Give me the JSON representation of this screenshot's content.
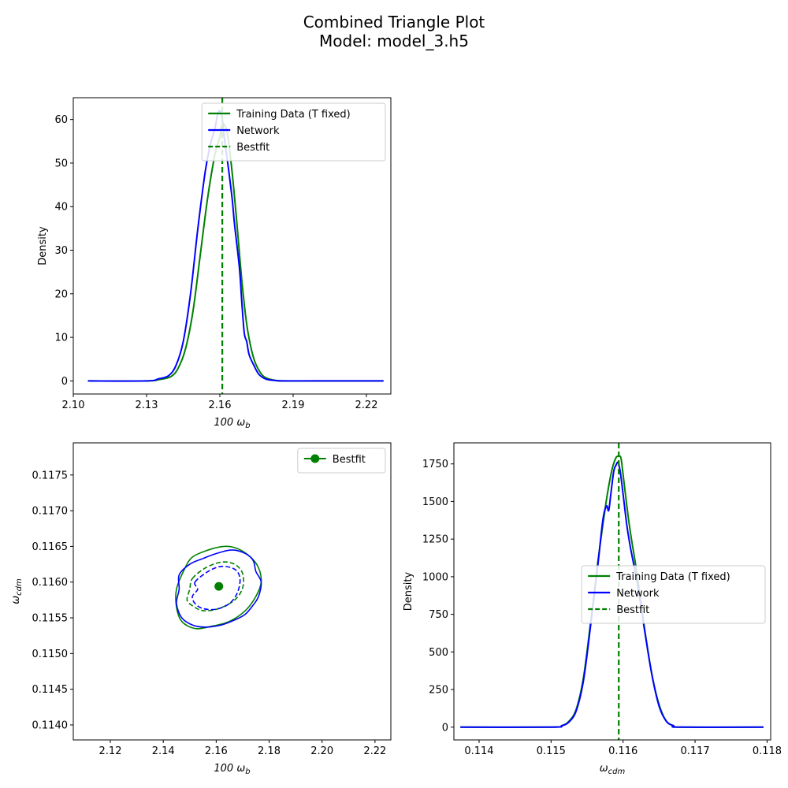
{
  "figure": {
    "title": "Combined Triangle Plot",
    "subtitle": "Model: model_3.h5"
  },
  "colors": {
    "training": "#008000",
    "network": "#0000ff",
    "bestfit": "#008000"
  },
  "chart_data": [
    {
      "id": "wb",
      "type": "line",
      "xlabel": "100 ω_b",
      "ylabel": "Density",
      "xlim": [
        2.1,
        2.23
      ],
      "ylim": [
        -3,
        65
      ],
      "x_ticks": [
        2.1,
        2.13,
        2.16,
        2.19,
        2.22
      ],
      "x_tick_labels": [
        "2.10",
        "2.13",
        "2.16",
        "2.19",
        "2.22"
      ],
      "y_ticks": [
        0,
        10,
        20,
        30,
        40,
        50,
        60
      ],
      "y_tick_labels": [
        "0",
        "10",
        "20",
        "30",
        "40",
        "50",
        "60"
      ],
      "legend": {
        "placement": "top-right",
        "entries": [
          "Training Data (T fixed)",
          "Network",
          "Bestfit"
        ]
      },
      "bestfit": 2.161,
      "series": [
        {
          "name": "Training Data (T fixed)",
          "x": [
            2.106,
            2.13,
            2.135,
            2.14,
            2.143,
            2.146,
            2.149,
            2.152,
            2.155,
            2.158,
            2.16,
            2.161,
            2.163,
            2.165,
            2.167,
            2.169,
            2.171,
            2.173,
            2.175,
            2.178,
            2.182,
            2.186,
            2.2,
            2.227
          ],
          "y": [
            0,
            0,
            0.3,
            1.0,
            3.0,
            7.5,
            16,
            29,
            42,
            52,
            56,
            59,
            57,
            48,
            36,
            23,
            13,
            7,
            3.5,
            1.0,
            0.2,
            0,
            0,
            0
          ]
        },
        {
          "name": "Network",
          "x": [
            2.106,
            2.13,
            2.135,
            2.139,
            2.142,
            2.145,
            2.148,
            2.151,
            2.154,
            2.156,
            2.158,
            2.159,
            2.16,
            2.161,
            2.162,
            2.163,
            2.165,
            2.166,
            2.168,
            2.169,
            2.17,
            2.171,
            2.172,
            2.174,
            2.176,
            2.179,
            2.183,
            2.186,
            2.2,
            2.227
          ],
          "y": [
            0,
            0,
            0.5,
            1.2,
            3.5,
            9,
            20,
            35,
            48,
            54,
            58,
            61,
            62,
            60,
            55,
            51,
            42,
            36,
            26,
            18,
            11,
            9,
            6,
            3.5,
            1.5,
            0.4,
            0.1,
            0,
            0,
            0
          ]
        }
      ]
    },
    {
      "id": "contour",
      "type": "contour",
      "xlabel": "100 ω_b",
      "ylabel": "ω_cdm",
      "xlim": [
        2.106,
        2.226
      ],
      "ylim": [
        0.11379,
        0.11795
      ],
      "x_ticks": [
        2.12,
        2.14,
        2.16,
        2.18,
        2.2,
        2.22
      ],
      "x_tick_labels": [
        "2.12",
        "2.14",
        "2.16",
        "2.18",
        "2.20",
        "2.22"
      ],
      "y_ticks": [
        0.114,
        0.1145,
        0.115,
        0.1155,
        0.116,
        0.1165,
        0.117,
        0.1175
      ],
      "y_tick_labels": [
        "0.1140",
        "0.1145",
        "0.1150",
        "0.1155",
        "0.1160",
        "0.1165",
        "0.1170",
        "0.1175"
      ],
      "legend": {
        "placement": "top-right",
        "entries": [
          "Bestfit"
        ]
      },
      "bestfit": {
        "x": 2.161,
        "y": 0.11594
      },
      "contours": [
        {
          "name": "Training Data (T fixed)",
          "level": "outer",
          "style": "solid",
          "x": [
            2.148,
            2.151,
            2.157,
            2.163,
            2.168,
            2.173,
            2.176,
            2.177,
            2.175,
            2.171,
            2.165,
            2.158,
            2.152,
            2.147,
            2.145,
            2.145,
            2.148
          ],
          "y": [
            0.11618,
            0.11635,
            0.11645,
            0.1165,
            0.11647,
            0.11635,
            0.1162,
            0.116,
            0.1158,
            0.1156,
            0.11545,
            0.11538,
            0.11535,
            0.11545,
            0.11565,
            0.1159,
            0.11618
          ]
        },
        {
          "name": "Network",
          "level": "outer",
          "style": "solid",
          "x": [
            2.146,
            2.15,
            2.155,
            2.16,
            2.166,
            2.171,
            2.174,
            2.175,
            2.177,
            2.176,
            2.174,
            2.171,
            2.167,
            2.162,
            2.156,
            2.151,
            2.147,
            2.145,
            2.146,
            2.146
          ],
          "y": [
            0.1161,
            0.11625,
            0.11633,
            0.1164,
            0.11645,
            0.1164,
            0.1163,
            0.11615,
            0.116,
            0.1158,
            0.11568,
            0.11555,
            0.11547,
            0.1154,
            0.11537,
            0.1154,
            0.1155,
            0.1157,
            0.1159,
            0.1161
          ]
        },
        {
          "name": "Training Data (T fixed)",
          "level": "inner",
          "style": "dashed",
          "x": [
            2.151,
            2.156,
            2.162,
            2.167,
            2.17,
            2.17,
            2.167,
            2.161,
            2.155,
            2.151,
            2.149,
            2.15,
            2.151
          ],
          "y": [
            0.11605,
            0.1162,
            0.11628,
            0.11625,
            0.11612,
            0.11592,
            0.11575,
            0.11563,
            0.1156,
            0.11567,
            0.11575,
            0.1159,
            0.11605
          ]
        },
        {
          "name": "Network",
          "level": "inner",
          "style": "dashed",
          "x": [
            2.152,
            2.157,
            2.162,
            2.167,
            2.169,
            2.168,
            2.165,
            2.16,
            2.155,
            2.152,
            2.151,
            2.153,
            2.152
          ],
          "y": [
            0.116,
            0.11615,
            0.11622,
            0.11618,
            0.11605,
            0.11585,
            0.1157,
            0.11562,
            0.11563,
            0.1157,
            0.1158,
            0.1159,
            0.116
          ]
        }
      ]
    },
    {
      "id": "wcdm",
      "type": "line",
      "xlabel": "ω_cdm",
      "ylabel": "Density",
      "xlim": [
        0.11365,
        0.11805
      ],
      "ylim": [
        -85,
        1890
      ],
      "x_ticks": [
        0.114,
        0.115,
        0.116,
        0.117,
        0.118
      ],
      "x_tick_labels": [
        "0.114",
        "0.115",
        "0.116",
        "0.117",
        "0.118"
      ],
      "y_ticks": [
        0,
        250,
        500,
        750,
        1000,
        1250,
        1500,
        1750
      ],
      "y_tick_labels": [
        "0",
        "250",
        "500",
        "750",
        "1000",
        "1250",
        "1500",
        "1750"
      ],
      "legend": {
        "placement": "center-right",
        "entries": [
          "Training Data (T fixed)",
          "Network",
          "Bestfit"
        ]
      },
      "bestfit": 0.11594,
      "series": [
        {
          "name": "Training Data (T fixed)",
          "x": [
            0.11374,
            0.115,
            0.11515,
            0.11525,
            0.11535,
            0.11545,
            0.11555,
            0.11565,
            0.11575,
            0.1158,
            0.11585,
            0.1159,
            0.11593,
            0.11597,
            0.116,
            0.11605,
            0.1161,
            0.1162,
            0.1163,
            0.1164,
            0.1165,
            0.1166,
            0.1167,
            0.1168,
            0.11795
          ],
          "y": [
            0,
            0,
            10,
            40,
            120,
            330,
            700,
            1100,
            1450,
            1600,
            1720,
            1790,
            1800,
            1790,
            1680,
            1480,
            1300,
            1000,
            650,
            350,
            150,
            40,
            10,
            0,
            0
          ]
        },
        {
          "name": "Network",
          "x": [
            0.11374,
            0.115,
            0.11515,
            0.11525,
            0.11535,
            0.11545,
            0.11555,
            0.11565,
            0.11572,
            0.11577,
            0.1158,
            0.11583,
            0.11587,
            0.1159,
            0.11593,
            0.11596,
            0.116,
            0.11605,
            0.1161,
            0.1162,
            0.1163,
            0.1164,
            0.1165,
            0.1166,
            0.1167,
            0.1168,
            0.11795
          ],
          "y": [
            0,
            0,
            10,
            35,
            110,
            310,
            680,
            1080,
            1380,
            1470,
            1440,
            1550,
            1700,
            1740,
            1760,
            1700,
            1550,
            1350,
            1200,
            950,
            640,
            350,
            140,
            40,
            10,
            0,
            0
          ]
        }
      ]
    }
  ]
}
